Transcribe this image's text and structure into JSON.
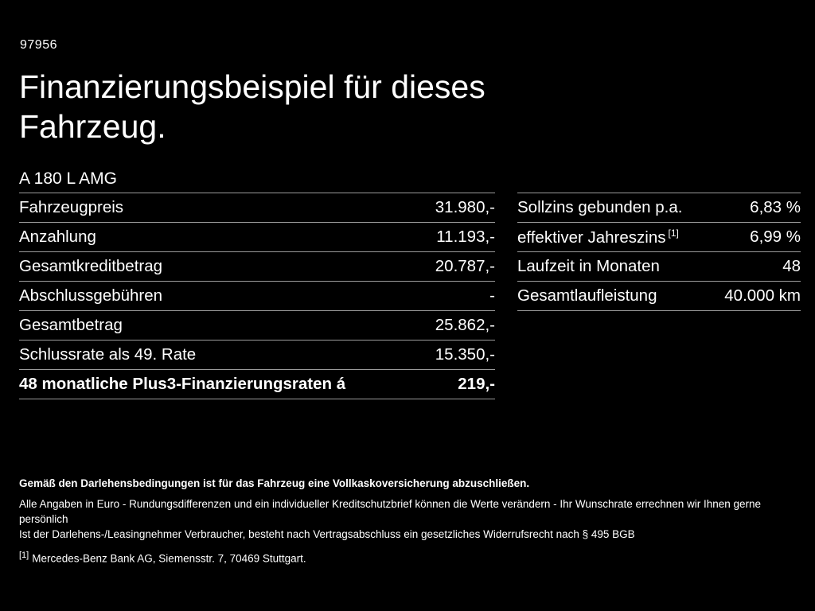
{
  "page": {
    "code": "97956",
    "title": "Finanzierungsbeispiel für dieses Fahrzeug.",
    "model": "A 180 L AMG"
  },
  "left_table": {
    "rows": [
      {
        "label": "Fahrzeugpreis",
        "value": "31.980,-"
      },
      {
        "label": "Anzahlung",
        "value": "11.193,-"
      },
      {
        "label": "Gesamtkreditbetrag",
        "value": "20.787,-"
      },
      {
        "label": "Abschlussgebühren",
        "value": "-"
      },
      {
        "label": "Gesamtbetrag",
        "value": "25.862,-"
      },
      {
        "label": "Schlussrate als 49. Rate",
        "value": "15.350,-"
      },
      {
        "label": "48 monatliche Plus3-Finanzierungsraten á",
        "value": "219,-"
      }
    ]
  },
  "right_table": {
    "rows": [
      {
        "label": "Sollzins gebunden p.a.",
        "sup": "",
        "value": "6,83 %"
      },
      {
        "label": "effektiver Jahreszins",
        "sup": "[1]",
        "value": "6,99 %"
      },
      {
        "label": "Laufzeit in Monaten",
        "sup": "",
        "value": "48"
      },
      {
        "label": "Gesamtlaufleistung",
        "sup": "",
        "value": "40.000 km"
      }
    ]
  },
  "footer": {
    "line1": "Gemäß den Darlehensbedingungen ist für das Fahrzeug eine Vollkaskoversicherung abzuschließen.",
    "line2": "Alle Angaben in Euro - Rundungsdifferenzen und ein individueller Kreditschutzbrief können die Werte verändern - Ihr Wunschrate errechnen wir Ihnen gerne persönlich",
    "line3": "Ist der Darlehens-/Leasingnehmer Verbraucher, besteht nach Vertragsabschluss ein gesetzliches Widerrufsrecht nach § 495 BGB",
    "footnote_marker": "[1]",
    "footnote_text": "Mercedes-Benz Bank AG, Siemensstr. 7, 70469 Stuttgart."
  },
  "colors": {
    "background": "#000000",
    "text": "#ffffff",
    "divider": "#9b9b9b"
  }
}
